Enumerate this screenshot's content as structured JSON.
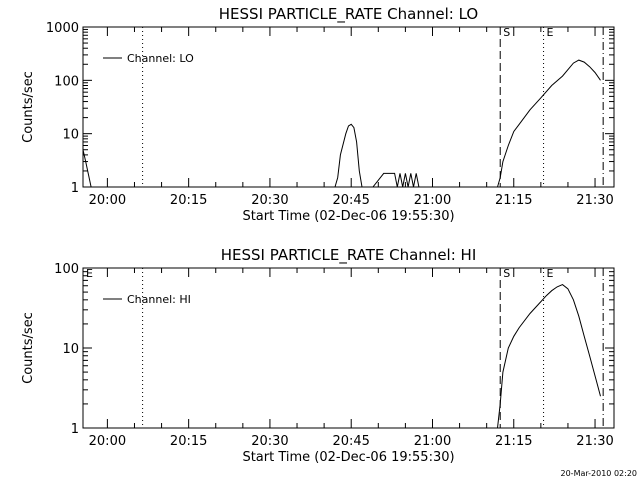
{
  "footer_timestamp": "20-Mar-2010 02:20",
  "chart_data": [
    {
      "type": "line",
      "title": "HESSI PARTICLE_RATE Channel: LO",
      "xlabel": "Start Time (02-Dec-06 19:55:30)",
      "ylabel": "Counts/sec",
      "yscale": "log",
      "xlim": [
        "19:55:30",
        "21:33:30"
      ],
      "ylim": [
        1,
        1000
      ],
      "x_ticks": [
        "20:00",
        "20:15",
        "20:30",
        "20:45",
        "21:00",
        "21:15",
        "21:30"
      ],
      "y_ticks": [
        {
          "value": 1,
          "label": "1"
        },
        {
          "value": 10,
          "label": "10"
        },
        {
          "value": 100,
          "label": "100"
        },
        {
          "value": 1000,
          "label": "1000"
        }
      ],
      "legend": {
        "position": "top-left",
        "entries": [
          "Channel: LO"
        ]
      },
      "markers": [
        {
          "time": "20:06:30",
          "style": "dotted",
          "label": ""
        },
        {
          "time": "21:12:30",
          "style": "dashed",
          "label": "S"
        },
        {
          "time": "21:20:30",
          "style": "dotted",
          "label": "E"
        },
        {
          "time": "21:31:30",
          "style": "dashdot",
          "label": ""
        }
      ],
      "series": [
        {
          "x": [
            "19:55:30",
            "19:56:00",
            "19:57:00",
            "19:57:30",
            "19:58:30",
            "19:59:00",
            "19:59:30",
            "20:00:00",
            "20:00:30",
            "20:01:00",
            "20:01:30",
            "20:02:00",
            "20:02:30",
            "20:03:00",
            "20:03:30",
            "20:04:00",
            "20:04:30",
            "20:05:00",
            "20:06:00",
            "20:07:00",
            "20:08:00",
            "20:08:30",
            "20:09:00",
            "20:09:30",
            "20:10:00",
            "20:42:00",
            "20:42:30",
            "20:43:00",
            "20:44:00",
            "20:44:30",
            "20:45:00",
            "20:45:30",
            "20:46:00",
            "20:46:30",
            "20:47:00",
            "20:47:30",
            "20:48:00",
            "20:48:30",
            "20:49:00",
            "20:51:00",
            "20:53:00",
            "20:53:30",
            "20:54:00",
            "20:54:30",
            "20:55:00",
            "20:55:30",
            "20:56:00",
            "20:56:30",
            "20:57:00",
            "20:57:30",
            "20:58:00",
            "21:12:00",
            "21:12:30",
            "21:13:00",
            "21:14:00",
            "21:15:00",
            "21:16:00",
            "21:18:00",
            "21:20:00",
            "21:22:00",
            "21:24:00",
            "21:26:00",
            "21:27:00",
            "21:28:00",
            "21:29:00",
            "21:30:00",
            "21:31:00"
          ],
          "y": [
            5,
            3,
            1,
            0.8,
            0.8,
            1,
            0.8,
            0.8,
            0.8,
            1,
            0.8,
            1,
            0.8,
            1,
            0.8,
            1,
            0.8,
            0.8,
            0.8,
            1,
            0.8,
            0.8,
            0.8,
            0.8,
            0.8,
            0.8,
            1.5,
            4,
            10,
            14,
            15,
            13,
            7,
            2,
            0.8,
            0.8,
            0.8,
            0.8,
            1,
            1.8,
            1.8,
            1,
            1.8,
            1,
            1.8,
            1,
            1.8,
            1,
            1.8,
            1,
            0.8,
            0.8,
            1.5,
            3,
            6,
            11,
            15,
            28,
            47,
            80,
            120,
            210,
            240,
            220,
            180,
            140,
            100
          ]
        }
      ]
    },
    {
      "type": "line",
      "title": "HESSI PARTICLE_RATE Channel: HI",
      "xlabel": "Start Time (02-Dec-06 19:55:30)",
      "ylabel": "Counts/sec",
      "yscale": "log",
      "xlim": [
        "19:55:30",
        "21:33:30"
      ],
      "ylim": [
        1,
        100
      ],
      "x_ticks": [
        "20:00",
        "20:15",
        "20:30",
        "20:45",
        "21:00",
        "21:15",
        "21:30"
      ],
      "y_ticks": [
        {
          "value": 1,
          "label": "1"
        },
        {
          "value": 10,
          "label": "10"
        },
        {
          "value": 100,
          "label": "100"
        }
      ],
      "legend": {
        "position": "top-left",
        "entries": [
          "Channel: HI"
        ]
      },
      "markers": [
        {
          "time": "19:55:30",
          "style": "dashed",
          "label": "E"
        },
        {
          "time": "20:06:30",
          "style": "dotted",
          "label": ""
        },
        {
          "time": "21:12:30",
          "style": "dashed",
          "label": "S"
        },
        {
          "time": "21:20:30",
          "style": "dotted",
          "label": "E"
        },
        {
          "time": "21:31:30",
          "style": "dashdot",
          "label": ""
        }
      ],
      "series": [
        {
          "x": [
            "21:12:00",
            "21:12:30",
            "21:13:00",
            "21:14:00",
            "21:15:00",
            "21:16:00",
            "21:18:00",
            "21:20:00",
            "21:21:00",
            "21:22:00",
            "21:23:00",
            "21:24:00",
            "21:25:00",
            "21:26:00",
            "21:27:00",
            "21:28:00",
            "21:29:00",
            "21:30:00",
            "21:31:00"
          ],
          "y": [
            0.9,
            2,
            5,
            10,
            14,
            18,
            27,
            38,
            45,
            52,
            58,
            62,
            55,
            40,
            25,
            14,
            8,
            4.5,
            2.5
          ]
        }
      ]
    }
  ]
}
